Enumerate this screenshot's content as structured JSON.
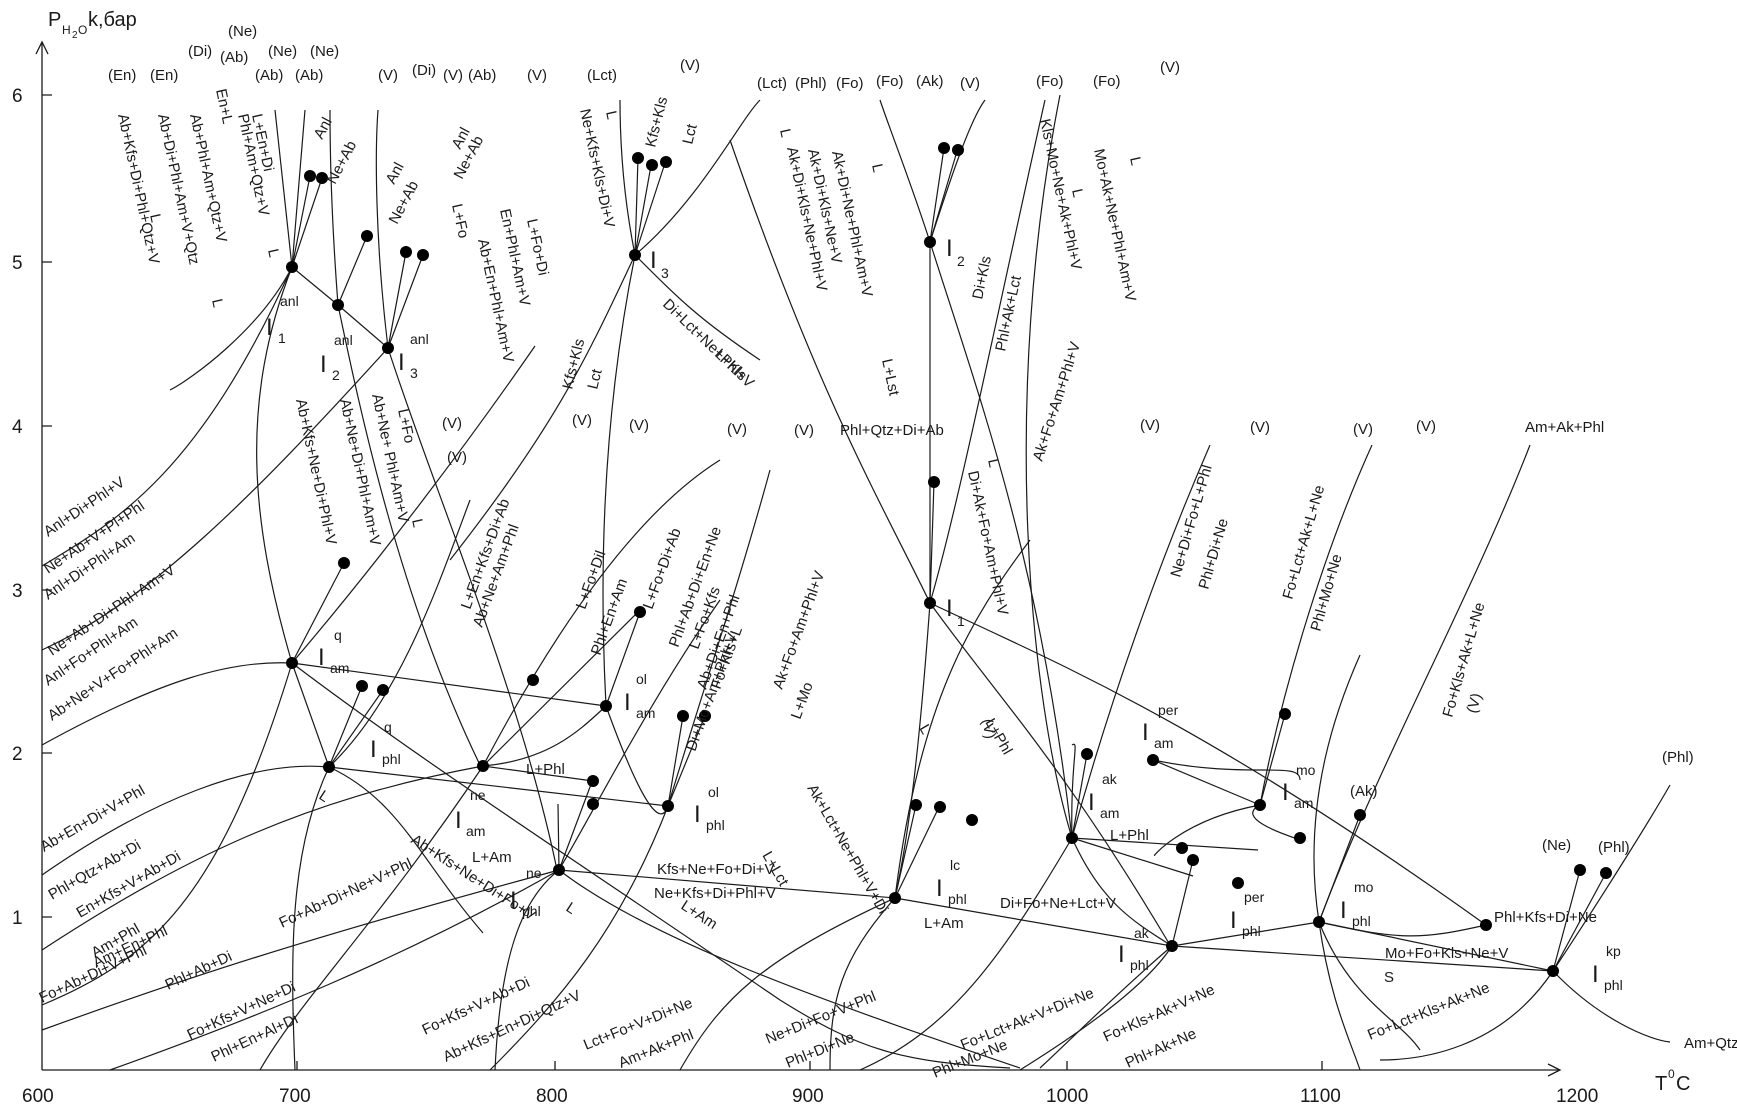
{
  "axis": {
    "y_label": "P",
    "y_label_sub": "H",
    "y_label_sub2": "2",
    "y_label_sub3": "O",
    "y_label_tail": "k,бар",
    "x_label": "T",
    "x_label_sup": "0",
    "x_label_tail": "C",
    "x_ticks": [
      "600",
      "700",
      "800",
      "900",
      "1000",
      "1100",
      "1200"
    ],
    "y_ticks": [
      "1",
      "2",
      "3",
      "4",
      "5",
      "6"
    ]
  },
  "points": [
    {
      "name": "I-anl-1",
      "main": "I",
      "sup": "anl",
      "sub": "1"
    },
    {
      "name": "I-anl-2",
      "main": "I",
      "sup": "anl",
      "sub": "2"
    },
    {
      "name": "I-anl-3",
      "main": "I",
      "sup": "anl",
      "sub": "3"
    },
    {
      "name": "I-3",
      "main": "I",
      "sup": "",
      "sub": "3"
    },
    {
      "name": "I-2",
      "main": "I",
      "sup": "",
      "sub": "2"
    },
    {
      "name": "I-1",
      "main": "I",
      "sup": "",
      "sub": "1"
    },
    {
      "name": "I-q-am",
      "main": "I",
      "sup": "q",
      "sub": "am"
    },
    {
      "name": "I-q-phl",
      "main": "I",
      "sup": "q",
      "sub": "phl"
    },
    {
      "name": "I-ol-am",
      "main": "I",
      "sup": "ol",
      "sub": "am"
    },
    {
      "name": "I-ne-am",
      "main": "I",
      "sup": "ne",
      "sub": "am"
    },
    {
      "name": "I-ol-phl",
      "main": "I",
      "sup": "ol",
      "sub": "phl"
    },
    {
      "name": "I-ne-phl",
      "main": "I",
      "sup": "ne",
      "sub": "phl"
    },
    {
      "name": "I-lc-phl",
      "main": "I",
      "sup": "lc",
      "sub": "phl"
    },
    {
      "name": "I-ak-am",
      "main": "I",
      "sup": "ak",
      "sub": "am"
    },
    {
      "name": "I-per-am",
      "main": "I",
      "sup": "per",
      "sub": "am"
    },
    {
      "name": "I-mo-am",
      "main": "I",
      "sup": "mo",
      "sub": "am"
    },
    {
      "name": "I-per-phl",
      "main": "I",
      "sup": "per",
      "sub": "phl"
    },
    {
      "name": "I-ak-phl",
      "main": "I",
      "sup": "ak",
      "sub": "phl"
    },
    {
      "name": "I-mo-phl",
      "main": "I",
      "sup": "mo",
      "sub": "phl"
    },
    {
      "name": "I-kp-phl",
      "main": "I",
      "sup": "kp",
      "sub": "phl"
    }
  ],
  "labels": [
    "(En)",
    "(En)",
    "(Di)",
    "(Ab)",
    "(Ab)",
    "(Ne)",
    "(Ne)",
    "(Ab)",
    "(Ne)",
    "(V)",
    "(Di)",
    "(V)",
    "(Ab)",
    "(V)",
    "(Lct)",
    "(V)",
    "(Lct)",
    "(Phl)",
    "(Fo)",
    "(Fo)",
    "(Ak)",
    "(V)",
    "(Fo)",
    "(Fo)",
    "(V)",
    "Ab+Kfs+Di+Phl+Qtz+V",
    "Ab+Di+Phl+Am+V+Qtz",
    "Ab+Phl+Am+Qtz+V",
    "En+L",
    "Phl+Am+Qtz+V",
    "L+En+Di",
    "L",
    "L",
    "L",
    "Anl",
    "Ne+Ab",
    "Anl",
    "Ne+Ab",
    "Anl",
    "Ne+Ab",
    "Ne+Kfs+Kls+Di+V",
    "L",
    "Kfs+Kls",
    "Lct",
    "L+Fo",
    "Ab+En+Phl+Am+V",
    "En+Phl+Am+V",
    "L+Fo+Di",
    "Kfs+Kls",
    "Lct",
    "Di+Lct+Ne+Phl+V",
    "L+Kls",
    "L",
    "Ak+Di+Kls+Ne+Phl+V",
    "Ak+Di+Kls+Ne+V",
    "Ak+Di+Ne+Phl+Am+V",
    "L",
    "L+Lst",
    "Di+Kls",
    "Phl+Ak+Lct",
    "Kls+Mo+Ne+Ak+Phl+V",
    "L",
    "Mo+Ak+Ne+Phl+Am+V",
    "L",
    "Anl+Di+Phl+V",
    "Ne+Ab+V+Pl+Phl",
    "Anl+Di+Phl+Am",
    "Ne+Ab+Di+Phl+Am+V",
    "Anl+Fo+Phl+Am",
    "Ab+Ne+V+Fo+Phl+Am",
    "Ab+Kfs+Ne+Di+Phl+V",
    "Ab+Ne+Di+Phl+Am+V",
    "Ab+Ne+ Phl+Am+V",
    "L+Fo",
    "L",
    "(V)",
    "(V)",
    "(V)",
    "(V)",
    "(V)",
    "(V)",
    "Phl+Qtz+Di+Ab",
    "L+En+Kfs+Di+Ab",
    "Ab+Ne+Am+Phl",
    "L+Fo+Dil",
    "Phl+En+Am",
    "L+Fo+Di+Ab",
    "Phl+Ab+Di+En+Ne",
    "L+Fo+Kfs",
    "Ab+Di+En+Phl",
    "Fo+Kfs+L",
    "Di+Mo+Am+Phl+V",
    "Ak+Fo+Am+Phl+V",
    "L+Mo",
    "Ak+Fo+Am+Phl+V",
    "Di+Ak+Fo+Am+Phl+V",
    "L",
    "(V)",
    "(V)",
    "(V)",
    "(V)",
    "(V)",
    "Am+Ak+Phl",
    "Ne+Di+Fo+L+Phl",
    "Phl+Di+Ne",
    "Fo+Lct+Ak+L+Ne",
    "Phl+Mo+Ne",
    "Fo+Kls+Ak+L+Ne",
    "(V)",
    "(Phl)",
    "(Ak)",
    "(Ne)",
    "(Phl)",
    "Am+Qtz+Phl",
    "Ab+En+Di+V+Phl",
    "Phl+Qtz+Ab+Di",
    "En+Kfs+V+Ab+Di",
    "Am+Phl",
    "Am+En+Phl",
    "Fo+Ab+Di+Ne+V+Phl",
    "Fo+Ab+Di+V+Phl",
    "Phl+Ab+Di",
    "Fo+Kfs+V+Ne+Di",
    "Phl+En+Al+Di",
    "Fo+Kfs+V+Ab+Di",
    "Ab+Kfs+En+Di+Qtz+V",
    "L",
    "Ab+Kfs+Ne+Di+Fo+V",
    "L",
    "L+Am",
    "L+Am",
    "L+Phl",
    "Kfs+Ne+Fo+Di+V",
    "Ne+Kfs+Di+Phl+V",
    "L+Lct",
    "Ak+Lct+Ne+Phl+V+Di",
    "L",
    "L+Phl",
    "Di+Fo+Ne+Lct+V",
    "L+Am",
    "L+Phl",
    "Mo+Fo+Kls+Ne+V",
    "S",
    "Phl+Kfs+Di+Ne",
    "Lct+Fo+V+Di+Ne",
    "Am+Ak+Phl",
    "Ne+Di+Fo+V+Phl",
    "Phl+Di+Ne",
    "Fo+Lct+Ak+V+Di+Ne",
    "Phl+Mo+Ne",
    "Fo+Kls+Ak+V+Ne",
    "Phl+Ak+Ne",
    "Fo+Lct+Kls+Ak+Ne"
  ]
}
